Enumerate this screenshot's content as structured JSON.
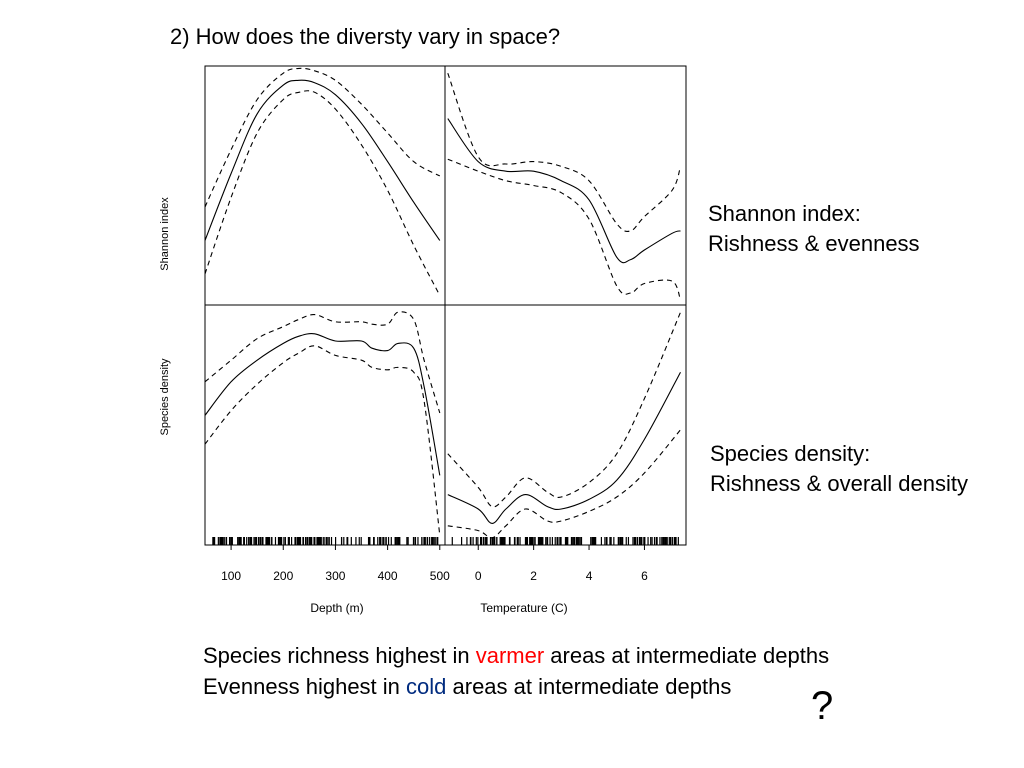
{
  "slide": {
    "title": "2) How does the diversty vary in space?",
    "notes": {
      "shannon_line1": "Shannon index:",
      "shannon_line2": "Rishness & evenness",
      "density_line1": "Species density:",
      "density_line2": "Rishness & overall density"
    },
    "conclusion": {
      "line1_pre": "Species richness highest in ",
      "line1_word": "varmer",
      "line1_post": " areas at intermediate depths",
      "line2_pre": "Evenness highest in ",
      "line2_word": "cold",
      "line2_post": " areas at intermediate depths"
    },
    "question_mark": "?",
    "colors": {
      "warm_word": "#ff0000",
      "cold_word": "#002b7f"
    }
  },
  "chart_data": [
    {
      "type": "line",
      "panel": "top-left",
      "xlabel": "",
      "ylabel": "Shannon index",
      "xlim": [
        50,
        510
      ],
      "ylim": [
        0,
        1
      ],
      "x": [
        50,
        100,
        150,
        200,
        230,
        260,
        300,
        350,
        400,
        450,
        500
      ],
      "series": [
        {
          "values": [
            0.27,
            0.55,
            0.8,
            0.92,
            0.94,
            0.93,
            0.88,
            0.76,
            0.6,
            0.43,
            0.27
          ]
        },
        {
          "values": [
            0.41,
            0.65,
            0.86,
            0.97,
            0.99,
            0.98,
            0.94,
            0.84,
            0.72,
            0.6,
            0.54
          ]
        },
        {
          "values": [
            0.13,
            0.45,
            0.72,
            0.86,
            0.89,
            0.89,
            0.82,
            0.67,
            0.48,
            0.25,
            0.04
          ]
        }
      ]
    },
    {
      "type": "line",
      "panel": "top-right",
      "xlabel": "",
      "ylabel": "",
      "xlim": [
        -1.2,
        7.5
      ],
      "ylim": [
        0,
        1
      ],
      "x": [
        -1.1,
        0,
        1,
        2,
        3,
        4,
        5,
        5.5,
        6,
        7,
        7.3
      ],
      "series": [
        {
          "values": [
            0.78,
            0.6,
            0.56,
            0.56,
            0.52,
            0.44,
            0.2,
            0.19,
            0.23,
            0.3,
            0.31
          ]
        },
        {
          "values": [
            0.97,
            0.62,
            0.59,
            0.6,
            0.58,
            0.52,
            0.34,
            0.31,
            0.37,
            0.48,
            0.58
          ]
        },
        {
          "values": [
            0.61,
            0.56,
            0.52,
            0.5,
            0.47,
            0.36,
            0.08,
            0.05,
            0.09,
            0.1,
            0.02
          ]
        }
      ]
    },
    {
      "type": "line",
      "panel": "bottom-left",
      "xlabel": "Depth (m)",
      "ylabel": "Species density",
      "xlim": [
        50,
        510
      ],
      "xticks": [
        100,
        200,
        300,
        400,
        500
      ],
      "ylim": [
        0,
        1
      ],
      "x": [
        50,
        100,
        150,
        200,
        230,
        260,
        300,
        350,
        370,
        400,
        420,
        450,
        470,
        500
      ],
      "series": [
        {
          "values": [
            0.54,
            0.68,
            0.77,
            0.84,
            0.87,
            0.88,
            0.85,
            0.85,
            0.82,
            0.81,
            0.84,
            0.82,
            0.66,
            0.29
          ]
        },
        {
          "values": [
            0.68,
            0.77,
            0.86,
            0.91,
            0.94,
            0.96,
            0.93,
            0.93,
            0.92,
            0.92,
            0.97,
            0.94,
            0.77,
            0.55
          ]
        },
        {
          "values": [
            0.42,
            0.56,
            0.67,
            0.76,
            0.8,
            0.83,
            0.79,
            0.77,
            0.74,
            0.73,
            0.74,
            0.72,
            0.6,
            0.04
          ]
        }
      ]
    },
    {
      "type": "line",
      "panel": "bottom-right",
      "xlabel": "Temperature (C)",
      "ylabel": "",
      "xlim": [
        -1.2,
        7.5
      ],
      "xticks": [
        0,
        2,
        4,
        6
      ],
      "ylim": [
        0,
        1
      ],
      "x": [
        -1.1,
        0,
        0.5,
        1,
        1.7,
        2.5,
        3,
        4,
        5,
        6,
        7.3
      ],
      "series": [
        {
          "values": [
            0.21,
            0.15,
            0.09,
            0.15,
            0.21,
            0.16,
            0.15,
            0.19,
            0.27,
            0.44,
            0.72
          ]
        },
        {
          "values": [
            0.38,
            0.24,
            0.16,
            0.2,
            0.28,
            0.22,
            0.2,
            0.26,
            0.38,
            0.61,
            0.97
          ]
        },
        {
          "values": [
            0.08,
            0.06,
            0.03,
            0.08,
            0.15,
            0.1,
            0.1,
            0.14,
            0.2,
            0.3,
            0.48
          ]
        }
      ]
    }
  ]
}
